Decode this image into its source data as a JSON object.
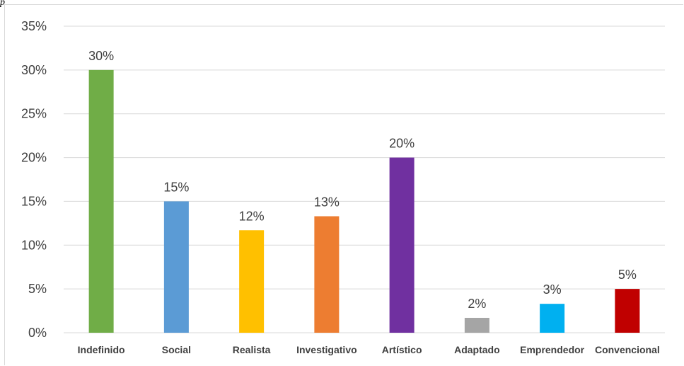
{
  "top_mark": "p",
  "chart_data": {
    "type": "bar",
    "title": "",
    "xlabel": "",
    "ylabel": "",
    "ylim": [
      0,
      35
    ],
    "y_ticks": [
      "0%",
      "5%",
      "10%",
      "15%",
      "20%",
      "25%",
      "30%",
      "35%"
    ],
    "y_tick_values": [
      0,
      5,
      10,
      15,
      20,
      25,
      30,
      35
    ],
    "grid": true,
    "categories": [
      "Indefinido",
      "Social",
      "Realista",
      "Investigativo",
      "Artístico",
      "Adaptado",
      "Emprendedor",
      "Convencional"
    ],
    "values": [
      30,
      15,
      11.7,
      13.3,
      20,
      1.7,
      3.3,
      5
    ],
    "data_labels": [
      "30%",
      "15%",
      "12%",
      "13%",
      "20%",
      "2%",
      "3%",
      "5%"
    ],
    "colors": [
      "#70ad47",
      "#5b9bd5",
      "#ffc000",
      "#ed7d31",
      "#7030a0",
      "#a5a5a5",
      "#00b0f0",
      "#c00000"
    ]
  }
}
